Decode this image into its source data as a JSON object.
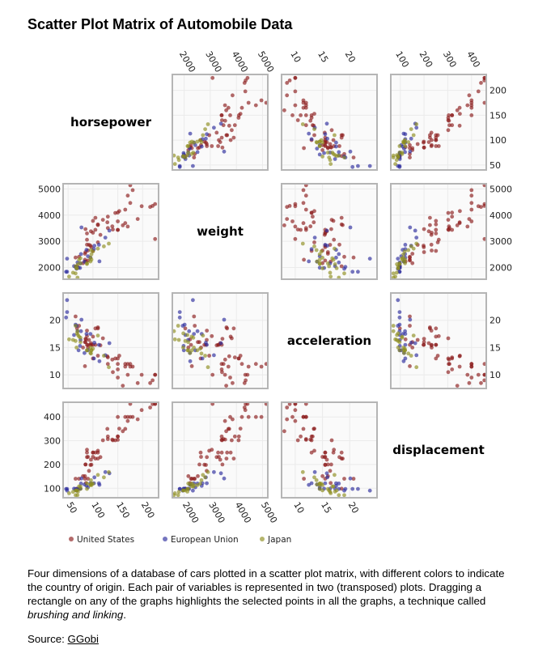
{
  "title": "Scatter Plot Matrix of Automobile Data",
  "caption": {
    "text": "Four dimensions of a database of cars plotted in a scatter plot matrix, with different colors to indicate the country of origin. Each pair of variables is represented in two (transposed) plots. Dragging a rectangle on any of the graphs highlights the selected points in all the graphs, a technique called ",
    "emphasis": "brushing and linking",
    "end": "."
  },
  "source": {
    "label": "Source: ",
    "link_text": "GGobi"
  },
  "chart_data": {
    "type": "scatter",
    "grid": true,
    "variables": [
      {
        "name": "horsepower",
        "ticks": [
          50,
          100,
          150,
          200
        ],
        "range": [
          40,
          232
        ]
      },
      {
        "name": "weight",
        "ticks": [
          2000,
          3000,
          4000,
          5000
        ],
        "range": [
          1550,
          5200
        ]
      },
      {
        "name": "acceleration",
        "ticks": [
          10,
          15,
          20
        ],
        "range": [
          7.5,
          25
        ]
      },
      {
        "name": "displacement",
        "ticks": [
          100,
          200,
          300,
          400
        ],
        "range": [
          60,
          462
        ]
      }
    ],
    "legend_position": "bottom",
    "series": [
      {
        "name": "United States",
        "color": "#8b1a1a",
        "points": [
          [
            130,
            3504,
            12,
            307
          ],
          [
            165,
            3693,
            11.5,
            350
          ],
          [
            150,
            3436,
            11,
            318
          ],
          [
            150,
            3433,
            12,
            304
          ],
          [
            140,
            3449,
            10.5,
            302
          ],
          [
            198,
            4341,
            10,
            429
          ],
          [
            220,
            4354,
            9,
            454
          ],
          [
            215,
            4312,
            8.5,
            440
          ],
          [
            225,
            4425,
            10,
            455
          ],
          [
            190,
            3850,
            8.5,
            390
          ],
          [
            170,
            3563,
            10,
            383
          ],
          [
            160,
            3609,
            8,
            340
          ],
          [
            150,
            3761,
            9.5,
            400
          ],
          [
            225,
            3086,
            10,
            455
          ],
          [
            95,
            2833,
            15.5,
            198
          ],
          [
            97,
            2774,
            15.5,
            199
          ],
          [
            85,
            2587,
            16,
            200
          ],
          [
            90,
            2648,
            15,
            232
          ],
          [
            100,
            2634,
            13,
            250
          ],
          [
            105,
            3439,
            15.5,
            250
          ],
          [
            100,
            3329,
            15.5,
            232
          ],
          [
            88,
            3302,
            15.5,
            250
          ],
          [
            165,
            4209,
            12,
            400
          ],
          [
            175,
            4464,
            11.5,
            400
          ],
          [
            153,
            4154,
            13.5,
            351
          ],
          [
            150,
            4096,
            13,
            318
          ],
          [
            180,
            4955,
            11.5,
            400
          ],
          [
            170,
            4746,
            12,
            400
          ],
          [
            175,
            5140,
            12,
            455
          ],
          [
            110,
            2962,
            13.5,
            258
          ],
          [
            72,
            2408,
            19,
            140
          ],
          [
            86,
            2226,
            16.5,
            122
          ],
          [
            90,
            2264,
            15.5,
            140
          ],
          [
            145,
            4082,
            13,
            302
          ],
          [
            110,
            3645,
            18.5,
            250
          ],
          [
            105,
            3897,
            18.5,
            225
          ],
          [
            100,
            3781,
            17,
            250
          ],
          [
            80,
            2164,
            15,
            151
          ],
          [
            84,
            2525,
            16,
            151
          ],
          [
            92,
            2865,
            16.4,
            173
          ],
          [
            115,
            3245,
            15.4,
            231
          ],
          [
            130,
            3940,
            13.2,
            318
          ],
          [
            85,
            3465,
            16.6,
            200
          ],
          [
            88,
            2870,
            18.1,
            231
          ],
          [
            68,
            2045,
            18.5,
            98
          ],
          [
            110,
            3620,
            18.7,
            225
          ],
          [
            65,
            2380,
            20.7,
            140
          ],
          [
            84,
            2295,
            11.6,
            140
          ],
          [
            88,
            3060,
            17.1,
            262
          ],
          [
            120,
            3820,
            16.7,
            302
          ],
          [
            129,
            3725,
            13.4,
            350
          ],
          [
            139,
            3570,
            12.8,
            305
          ],
          [
            96,
            3380,
            15.8,
            220
          ]
        ]
      },
      {
        "name": "European Union",
        "color": "#2b2b9c",
        "points": [
          [
            46,
            1835,
            20.5,
            97
          ],
          [
            87,
            2672,
            17.5,
            110
          ],
          [
            90,
            2430,
            14.5,
            104
          ],
          [
            95,
            2375,
            17.5,
            121
          ],
          [
            113,
            2234,
            12.5,
            114
          ],
          [
            48,
            1835,
            21.5,
            97
          ],
          [
            69,
            2189,
            18,
            97
          ],
          [
            76,
            2511,
            18,
            120
          ],
          [
            112,
            2868,
            15.5,
            121
          ],
          [
            67,
            1950,
            19,
            90
          ],
          [
            71,
            1990,
            14.5,
            97
          ],
          [
            102,
            2700,
            13,
            121
          ],
          [
            83,
            2220,
            14,
            116
          ],
          [
            75,
            2155,
            16.4,
            98
          ],
          [
            133,
            3410,
            15.8,
            163
          ],
          [
            48,
            2335,
            23.7,
            90
          ],
          [
            77,
            3530,
            20.1,
            141
          ],
          [
            125,
            3140,
            13.6,
            168
          ],
          [
            65,
            2020,
            19.2,
            97
          ],
          [
            74,
            1980,
            15.3,
            98
          ],
          [
            103,
            2830,
            15.9,
            146
          ],
          [
            62,
            2050,
            17.3,
            98
          ]
        ]
      },
      {
        "name": "Japan",
        "color": "#8e8e1e",
        "points": [
          [
            95,
            2372,
            15,
            113
          ],
          [
            88,
            2130,
            14.5,
            97
          ],
          [
            65,
            1773,
            19,
            71
          ],
          [
            69,
            1613,
            18,
            71
          ],
          [
            97,
            2506,
            14.5,
            113
          ],
          [
            75,
            2155,
            16,
            97
          ],
          [
            52,
            1649,
            16.5,
            79
          ],
          [
            97,
            2300,
            14.5,
            120
          ],
          [
            67,
            1965,
            15,
            91
          ],
          [
            95,
            2228,
            14,
            116
          ],
          [
            70,
            2125,
            17.3,
            86
          ],
          [
            68,
            1970,
            17.6,
            91
          ],
          [
            75,
            2350,
            16.8,
            107
          ],
          [
            100,
            2615,
            14.8,
            119
          ],
          [
            132,
            2910,
            11.4,
            168
          ],
          [
            88,
            2160,
            14.5,
            120
          ],
          [
            60,
            1800,
            16.4,
            85
          ],
          [
            122,
            2807,
            13.5,
            146
          ],
          [
            96,
            2665,
            13.9,
            134
          ],
          [
            72,
            2290,
            17,
            108
          ],
          [
            65,
            2045,
            16.2,
            91
          ],
          [
            110,
            2720,
            17.2,
            156
          ]
        ]
      }
    ]
  }
}
